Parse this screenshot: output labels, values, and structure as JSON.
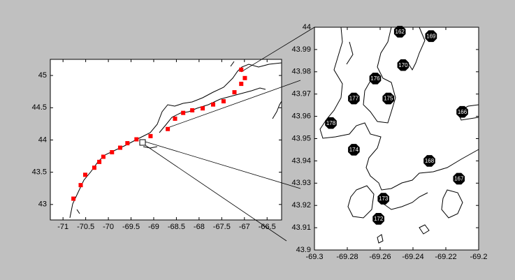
{
  "chart_data": [
    {
      "type": "scatter",
      "xlim": [
        -71.28,
        -66.18
      ],
      "ylim": [
        42.76,
        45.25
      ],
      "xticks": [
        -71,
        -70.5,
        -70,
        -69.5,
        -69,
        -68.5,
        -68,
        -67.5,
        -67,
        -66.5
      ],
      "yticks": [
        43,
        43.5,
        44,
        44.5,
        45
      ],
      "series": [
        {
          "color": "#ff0000",
          "x": [
            -70.77,
            -70.61,
            -70.51,
            -70.31,
            -70.2,
            -70.11,
            -69.92,
            -69.74,
            -69.58,
            -69.38,
            -69.07,
            -68.69,
            -68.53,
            -68.35,
            -68.15,
            -67.92,
            -67.69,
            -67.46,
            -67.22,
            -67.07,
            -66.99,
            -67.07
          ],
          "y": [
            43.09,
            43.3,
            43.46,
            43.57,
            43.66,
            43.74,
            43.81,
            43.88,
            43.95,
            44.01,
            44.06,
            44.17,
            44.33,
            44.42,
            44.46,
            44.49,
            44.55,
            44.6,
            44.74,
            44.87,
            44.96,
            45.09
          ]
        }
      ]
    },
    {
      "type": "scatter",
      "xlim": [
        -69.3,
        -69.2
      ],
      "ylim": [
        43.9,
        44
      ],
      "xticks": [
        -69.3,
        -69.28,
        -69.26,
        -69.24,
        -69.22,
        -69.2
      ],
      "yticks": [
        43.9,
        43.91,
        43.92,
        43.93,
        43.94,
        43.95,
        43.96,
        43.97,
        43.98,
        43.99,
        44
      ],
      "series": [
        {
          "color": "#000000",
          "x": [
            -69.248,
            -69.229,
            -69.246,
            -69.263,
            -69.255,
            -69.276,
            -69.21,
            -69.29,
            -69.276,
            -69.23,
            -69.212,
            -69.258,
            -69.261
          ],
          "y": [
            43.998,
            43.996,
            43.983,
            43.977,
            43.968,
            43.968,
            43.962,
            43.957,
            43.945,
            43.94,
            43.932,
            43.923,
            43.914
          ],
          "point_labels": [
            "162",
            "169",
            "170",
            "176",
            "175",
            "177",
            "166",
            "178",
            "174",
            "168",
            "167",
            "173",
            "172"
          ]
        }
      ]
    }
  ]
}
